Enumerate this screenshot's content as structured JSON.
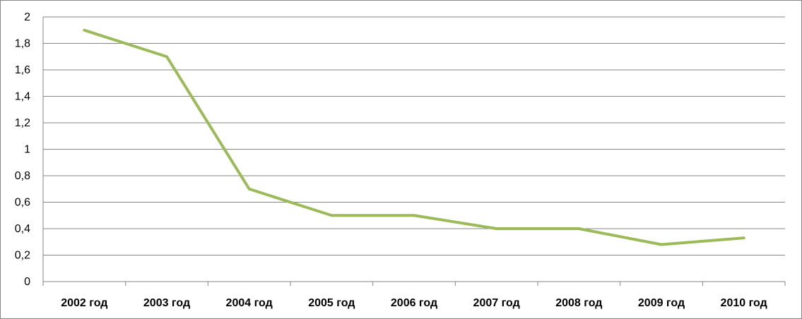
{
  "chart_data": {
    "type": "line",
    "categories": [
      "2002 год",
      "2003 год",
      "2004 год",
      "2005 год",
      "2006 год",
      "2007 год",
      "2008 год",
      "2009 год",
      "2010 год"
    ],
    "series": [
      {
        "values": [
          1.9,
          1.7,
          0.7,
          0.5,
          0.5,
          0.4,
          0.4,
          0.28,
          0.33
        ],
        "color": "#9bbb59"
      }
    ],
    "yticks": [
      "0",
      "0,2",
      "0,4",
      "0,6",
      "0,8",
      "1",
      "1,2",
      "1,4",
      "1,6",
      "1,8",
      "2"
    ],
    "ylim": [
      0,
      2
    ],
    "grid": true,
    "legend": "none",
    "colors": {
      "gridline": "#868686",
      "axis": "#868686"
    }
  }
}
